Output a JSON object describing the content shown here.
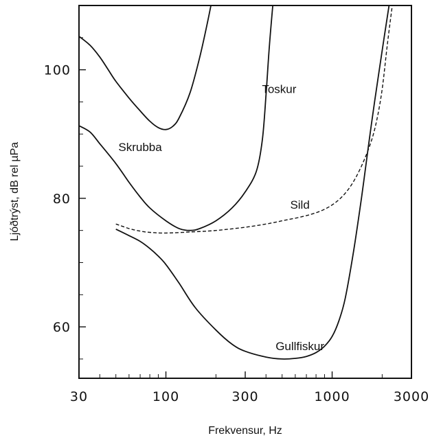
{
  "chart_data": {
    "type": "line",
    "xlabel": "Frekvensur, Hz",
    "ylabel": "Ljóðtrýst, dB rel µPa",
    "x_scale": "log",
    "xlim": [
      30,
      3000
    ],
    "ylim": [
      52,
      110
    ],
    "grid": false,
    "x_ticks": [
      {
        "value": 30,
        "label": "30"
      },
      {
        "value": 100,
        "label": "100"
      },
      {
        "value": 300,
        "label": "300"
      },
      {
        "value": 1000,
        "label": "1000"
      },
      {
        "value": 3000,
        "label": "3000"
      }
    ],
    "y_ticks": [
      {
        "value": 60,
        "label": "60"
      },
      {
        "value": 80,
        "label": "80"
      },
      {
        "value": 100,
        "label": "100"
      }
    ],
    "series": [
      {
        "name": "Skrubba",
        "style": "solid",
        "color": "#111111",
        "label_at": [
          70,
          88
        ],
        "points": [
          [
            30,
            105.2
          ],
          [
            35,
            103.8
          ],
          [
            40,
            102.0
          ],
          [
            45,
            100.0
          ],
          [
            50,
            98.2
          ],
          [
            60,
            95.6
          ],
          [
            70,
            93.6
          ],
          [
            80,
            92.0
          ],
          [
            90,
            91.0
          ],
          [
            100,
            90.7
          ],
          [
            110,
            91.2
          ],
          [
            120,
            92.5
          ],
          [
            140,
            96.5
          ],
          [
            160,
            102.0
          ],
          [
            180,
            108.0
          ],
          [
            200,
            114.0
          ]
        ]
      },
      {
        "name": "Toskur",
        "style": "solid",
        "color": "#111111",
        "label_at": [
          480,
          97
        ],
        "points": [
          [
            30,
            91.3
          ],
          [
            35,
            90.3
          ],
          [
            40,
            88.5
          ],
          [
            50,
            85.4
          ],
          [
            60,
            82.5
          ],
          [
            70,
            80.2
          ],
          [
            80,
            78.5
          ],
          [
            100,
            76.5
          ],
          [
            120,
            75.3
          ],
          [
            140,
            75.0
          ],
          [
            160,
            75.3
          ],
          [
            200,
            76.5
          ],
          [
            250,
            78.5
          ],
          [
            300,
            81.0
          ],
          [
            350,
            84.2
          ],
          [
            380,
            89.0
          ],
          [
            400,
            96.0
          ],
          [
            420,
            104.0
          ],
          [
            450,
            113.0
          ]
        ]
      },
      {
        "name": "Sild",
        "style": "dashed",
        "color": "#111111",
        "label_at": [
          640,
          79
        ],
        "points": [
          [
            50,
            76.0
          ],
          [
            60,
            75.3
          ],
          [
            70,
            74.9
          ],
          [
            80,
            74.7
          ],
          [
            100,
            74.6
          ],
          [
            150,
            74.8
          ],
          [
            200,
            75.0
          ],
          [
            300,
            75.5
          ],
          [
            400,
            76.0
          ],
          [
            500,
            76.5
          ],
          [
            700,
            77.3
          ],
          [
            900,
            78.3
          ],
          [
            1100,
            79.8
          ],
          [
            1300,
            82.0
          ],
          [
            1500,
            85.0
          ],
          [
            1700,
            88.5
          ],
          [
            1850,
            92.0
          ],
          [
            2000,
            97.0
          ],
          [
            2150,
            104.0
          ],
          [
            2300,
            110.0
          ]
        ]
      },
      {
        "name": "Gullfiskur",
        "style": "solid",
        "color": "#111111",
        "label_at": [
          640,
          57
        ],
        "points": [
          [
            50,
            75.2
          ],
          [
            60,
            74.2
          ],
          [
            70,
            73.3
          ],
          [
            80,
            72.2
          ],
          [
            90,
            71.0
          ],
          [
            100,
            69.7
          ],
          [
            120,
            66.8
          ],
          [
            150,
            63.0
          ],
          [
            200,
            59.5
          ],
          [
            250,
            57.3
          ],
          [
            300,
            56.2
          ],
          [
            400,
            55.3
          ],
          [
            500,
            55.0
          ],
          [
            600,
            55.1
          ],
          [
            700,
            55.4
          ],
          [
            800,
            56.0
          ],
          [
            900,
            57.0
          ],
          [
            1000,
            58.5
          ],
          [
            1100,
            61.0
          ],
          [
            1200,
            64.5
          ],
          [
            1350,
            72.0
          ],
          [
            1500,
            80.0
          ],
          [
            1650,
            88.0
          ],
          [
            1800,
            95.0
          ],
          [
            2000,
            103.0
          ],
          [
            2200,
            110.0
          ]
        ]
      }
    ]
  }
}
